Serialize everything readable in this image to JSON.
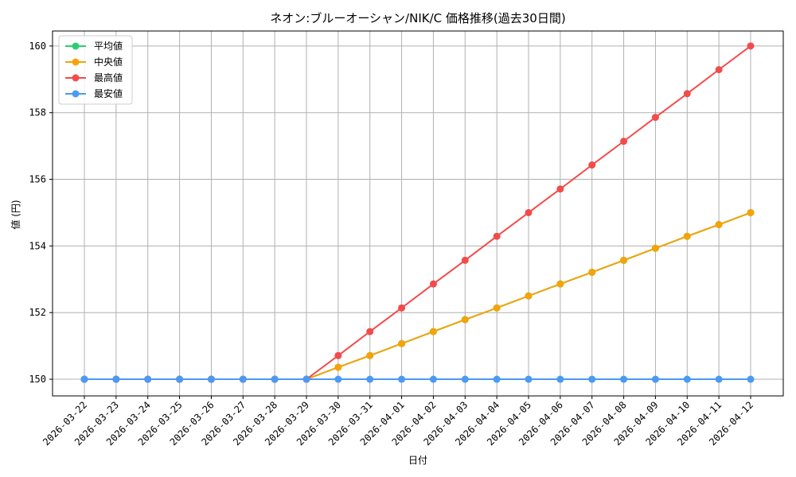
{
  "chart_data": {
    "type": "line",
    "title": "ネオン:ブルーオーシャン/NIK/C 価格推移(過去30日間)",
    "xlabel": "日付",
    "ylabel": "値 (円)",
    "categories": [
      "2026-03-22",
      "2026-03-23",
      "2026-03-24",
      "2026-03-25",
      "2026-03-26",
      "2026-03-27",
      "2026-03-28",
      "2026-03-29",
      "2026-03-30",
      "2026-03-31",
      "2026-04-01",
      "2026-04-02",
      "2026-04-03",
      "2026-04-04",
      "2026-04-05",
      "2026-04-06",
      "2026-04-07",
      "2026-04-08",
      "2026-04-09",
      "2026-04-10",
      "2026-04-11",
      "2026-04-12"
    ],
    "ylim": [
      149.5,
      160.45
    ],
    "yticks": [
      150,
      152,
      154,
      156,
      158,
      160
    ],
    "grid": true,
    "legend_position": "top-left",
    "series": [
      {
        "name": "平均値",
        "color": "#2ecc71",
        "values": [
          150,
          150,
          150,
          150,
          150,
          150,
          150,
          150,
          150.36,
          150.71,
          151.07,
          151.43,
          151.79,
          152.14,
          152.5,
          152.86,
          153.21,
          153.57,
          153.93,
          154.29,
          154.64,
          155
        ]
      },
      {
        "name": "中央値",
        "color": "#f5a30a",
        "values": [
          150,
          150,
          150,
          150,
          150,
          150,
          150,
          150,
          150.36,
          150.71,
          151.07,
          151.43,
          151.79,
          152.14,
          152.5,
          152.86,
          153.21,
          153.57,
          153.93,
          154.29,
          154.64,
          155
        ]
      },
      {
        "name": "最高値",
        "color": "#f24b4b",
        "values": [
          150,
          150,
          150,
          150,
          150,
          150,
          150,
          150,
          150.71,
          151.43,
          152.14,
          152.86,
          153.57,
          154.29,
          155,
          155.71,
          156.43,
          157.14,
          157.86,
          158.57,
          159.29,
          160
        ]
      },
      {
        "name": "最安値",
        "color": "#4a9af5",
        "values": [
          150,
          150,
          150,
          150,
          150,
          150,
          150,
          150,
          150,
          150,
          150,
          150,
          150,
          150,
          150,
          150,
          150,
          150,
          150,
          150,
          150,
          150
        ]
      }
    ]
  }
}
